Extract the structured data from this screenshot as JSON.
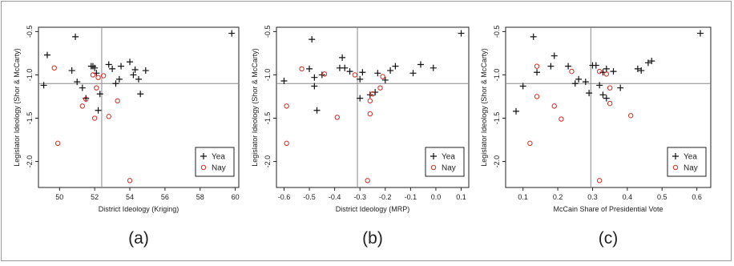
{
  "chart_data": [
    {
      "type": "scatter",
      "panel_label": "(a)",
      "xlabel": "District Ideology (Kriging)",
      "ylabel": "Legislator Ideology (Shor & McCarty)",
      "xlim": [
        48.8,
        60.2
      ],
      "ylim": [
        -2.3,
        -0.45
      ],
      "xticks": [
        50,
        52,
        54,
        56,
        58,
        60
      ],
      "yticks": [
        -0.5,
        -1.0,
        -1.5,
        -2.0
      ],
      "ytick_labels": [
        "-0.5",
        "-1.0",
        "-1.5",
        "-2.0"
      ],
      "xtick_labels": [
        "50",
        "52",
        "54",
        "56",
        "58",
        "60"
      ],
      "vline": 52.4,
      "hline": -1.1,
      "legend_position": "bottom-right",
      "series": [
        {
          "name": "Yea",
          "marker": "plus",
          "color": "#111111",
          "points": [
            [
              49.1,
              -1.12
            ],
            [
              49.3,
              -0.77
            ],
            [
              50.7,
              -0.95
            ],
            [
              50.9,
              -0.56
            ],
            [
              51.0,
              -1.08
            ],
            [
              51.3,
              -1.15
            ],
            [
              51.5,
              -1.27
            ],
            [
              51.8,
              -0.9
            ],
            [
              51.9,
              -0.9
            ],
            [
              52.0,
              -0.92
            ],
            [
              52.1,
              -0.98
            ],
            [
              52.2,
              -1.41
            ],
            [
              52.3,
              -1.22
            ],
            [
              52.8,
              -0.88
            ],
            [
              53.0,
              -0.93
            ],
            [
              53.2,
              -1.1
            ],
            [
              53.4,
              -1.05
            ],
            [
              53.5,
              -0.9
            ],
            [
              54.0,
              -0.85
            ],
            [
              54.2,
              -1.0
            ],
            [
              54.3,
              -0.94
            ],
            [
              54.5,
              -1.05
            ],
            [
              54.6,
              -1.22
            ],
            [
              54.9,
              -0.95
            ],
            [
              59.8,
              -0.52
            ]
          ]
        },
        {
          "name": "Nay",
          "marker": "circle",
          "color": "#d42a20",
          "points": [
            [
              49.7,
              -0.92
            ],
            [
              49.9,
              -1.79
            ],
            [
              51.3,
              -1.36
            ],
            [
              51.5,
              -1.28
            ],
            [
              51.9,
              -1.0
            ],
            [
              52.0,
              -1.5
            ],
            [
              52.1,
              -1.15
            ],
            [
              52.2,
              -1.03
            ],
            [
              52.5,
              -1.01
            ],
            [
              52.8,
              -1.48
            ],
            [
              53.3,
              -1.3
            ],
            [
              54.0,
              -2.22
            ]
          ]
        }
      ]
    },
    {
      "type": "scatter",
      "panel_label": "(b)",
      "xlabel": "District Ideology (MRP)",
      "ylabel": "Legislator Ideology (Shor & McCarty)",
      "xlim": [
        -0.63,
        0.13
      ],
      "ylim": [
        -2.3,
        -0.45
      ],
      "xticks": [
        -0.6,
        -0.5,
        -0.4,
        -0.3,
        -0.2,
        -0.1,
        0.0,
        0.1
      ],
      "xtick_labels": [
        "-0.6",
        "-0.5",
        "-0.4",
        "-0.3",
        "-0.2",
        "-0.1",
        "0.0",
        "0.1"
      ],
      "yticks": [
        -0.5,
        -1.0,
        -1.5,
        -2.0
      ],
      "ytick_labels": [
        "-0.5",
        "-1.0",
        "-1.5",
        "-2.0"
      ],
      "vline": -0.31,
      "hline": -1.1,
      "legend_position": "bottom-right",
      "series": [
        {
          "name": "Yea",
          "marker": "plus",
          "color": "#111111",
          "points": [
            [
              -0.6,
              -1.07
            ],
            [
              -0.5,
              -0.93
            ],
            [
              -0.49,
              -0.59
            ],
            [
              -0.48,
              -1.13
            ],
            [
              -0.48,
              -1.03
            ],
            [
              -0.47,
              -1.41
            ],
            [
              -0.45,
              -1.0
            ],
            [
              -0.38,
              -0.92
            ],
            [
              -0.37,
              -0.8
            ],
            [
              -0.36,
              -0.92
            ],
            [
              -0.34,
              -0.96
            ],
            [
              -0.3,
              -1.27
            ],
            [
              -0.3,
              -1.05
            ],
            [
              -0.29,
              -0.97
            ],
            [
              -0.26,
              -1.23
            ],
            [
              -0.24,
              -1.2
            ],
            [
              -0.23,
              -0.98
            ],
            [
              -0.2,
              -1.06
            ],
            [
              -0.18,
              -0.95
            ],
            [
              -0.16,
              -0.9
            ],
            [
              -0.09,
              -0.98
            ],
            [
              -0.06,
              -0.88
            ],
            [
              -0.01,
              -0.92
            ],
            [
              0.1,
              -0.52
            ]
          ]
        },
        {
          "name": "Nay",
          "marker": "circle",
          "color": "#d42a20",
          "points": [
            [
              -0.59,
              -1.36
            ],
            [
              -0.59,
              -1.79
            ],
            [
              -0.53,
              -0.93
            ],
            [
              -0.44,
              -0.99
            ],
            [
              -0.39,
              -1.49
            ],
            [
              -0.32,
              -1.0
            ],
            [
              -0.27,
              -2.22
            ],
            [
              -0.26,
              -1.3
            ],
            [
              -0.26,
              -1.45
            ],
            [
              -0.25,
              -1.22
            ],
            [
              -0.22,
              -1.15
            ],
            [
              -0.21,
              -1.02
            ]
          ]
        }
      ]
    },
    {
      "type": "scatter",
      "panel_label": "(c)",
      "xlabel": "McCain Share of Presidential Vote",
      "ylabel": "Legislator Ideology (Shor & McCarty)",
      "xlim": [
        0.05,
        0.64
      ],
      "ylim": [
        -2.3,
        -0.45
      ],
      "xticks": [
        0.1,
        0.2,
        0.3,
        0.4,
        0.5,
        0.6
      ],
      "xtick_labels": [
        "0.1",
        "0.2",
        "0.3",
        "0.4",
        "0.5",
        "0.6"
      ],
      "yticks": [
        -0.5,
        -1.0,
        -1.5,
        -2.0
      ],
      "ytick_labels": [
        "-0.5",
        "-1.0",
        "-1.5",
        "-2.0"
      ],
      "vline": 0.295,
      "hline": -1.1,
      "legend_position": "bottom-right",
      "series": [
        {
          "name": "Yea",
          "marker": "plus",
          "color": "#111111",
          "points": [
            [
              0.08,
              -1.42
            ],
            [
              0.1,
              -1.13
            ],
            [
              0.13,
              -0.56
            ],
            [
              0.14,
              -0.97
            ],
            [
              0.18,
              -0.9
            ],
            [
              0.19,
              -0.78
            ],
            [
              0.23,
              -0.9
            ],
            [
              0.25,
              -1.1
            ],
            [
              0.26,
              -1.05
            ],
            [
              0.28,
              -1.08
            ],
            [
              0.29,
              -1.21
            ],
            [
              0.3,
              -0.89
            ],
            [
              0.31,
              -0.89
            ],
            [
              0.32,
              -1.12
            ],
            [
              0.33,
              -0.97
            ],
            [
              0.33,
              -1.23
            ],
            [
              0.34,
              -0.93
            ],
            [
              0.34,
              -1.27
            ],
            [
              0.36,
              -0.96
            ],
            [
              0.38,
              -1.15
            ],
            [
              0.43,
              -0.93
            ],
            [
              0.44,
              -0.95
            ],
            [
              0.46,
              -0.86
            ],
            [
              0.47,
              -0.84
            ],
            [
              0.61,
              -0.52
            ]
          ]
        },
        {
          "name": "Nay",
          "marker": "circle",
          "color": "#d42a20",
          "points": [
            [
              0.12,
              -1.79
            ],
            [
              0.14,
              -0.9
            ],
            [
              0.14,
              -1.25
            ],
            [
              0.19,
              -1.36
            ],
            [
              0.21,
              -1.51
            ],
            [
              0.24,
              -0.96
            ],
            [
              0.32,
              -0.96
            ],
            [
              0.32,
              -2.22
            ],
            [
              0.34,
              -0.99
            ],
            [
              0.35,
              -1.15
            ],
            [
              0.35,
              -1.33
            ],
            [
              0.41,
              -1.47
            ]
          ]
        }
      ]
    }
  ]
}
